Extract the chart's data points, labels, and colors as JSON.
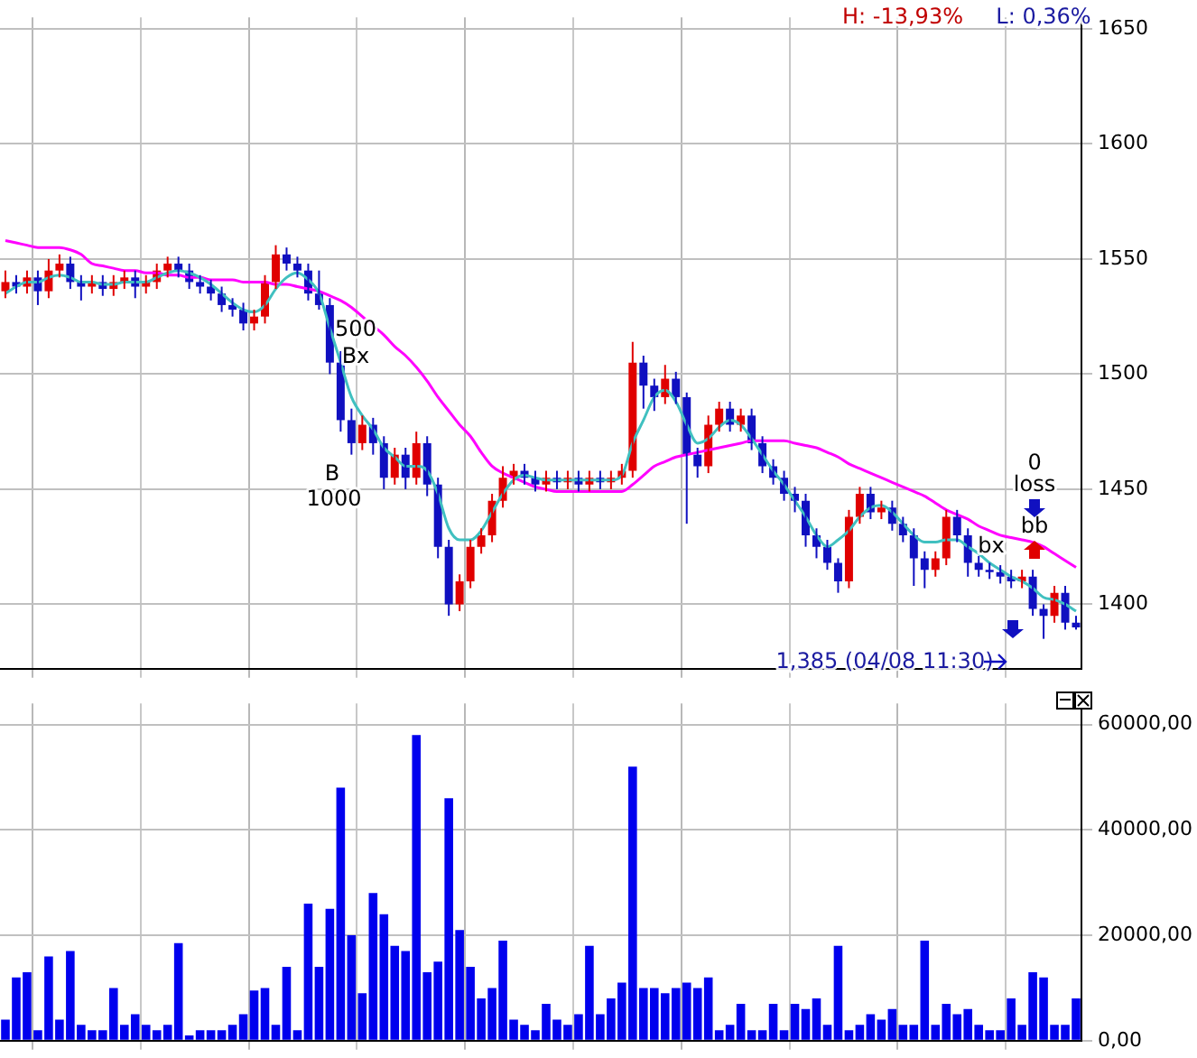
{
  "chart_data": [
    {
      "type": "candlestick",
      "categories": [
        null,
        null,
        null,
        null,
        null,
        null,
        null,
        null,
        null,
        null,
        null,
        null,
        null,
        null,
        null,
        null,
        null,
        null,
        null,
        null,
        null,
        null,
        null,
        null,
        null,
        null,
        null,
        null,
        null,
        null,
        null,
        null,
        null,
        null,
        null,
        null,
        null,
        null,
        null,
        null,
        null,
        null,
        null,
        null,
        null,
        null,
        null,
        null,
        null,
        null,
        null,
        null,
        null,
        null,
        null,
        null,
        null,
        null,
        null,
        null,
        null,
        null,
        null,
        null,
        null,
        null,
        null,
        null,
        null,
        null,
        null,
        null,
        null,
        null,
        null,
        null,
        null,
        null,
        null,
        null,
        null,
        null,
        null,
        null,
        null,
        null,
        null,
        null,
        null,
        null,
        null,
        null,
        null,
        null,
        null,
        null,
        null,
        null,
        null,
        null
      ],
      "ohlc": [
        [
          1536,
          1545,
          1533,
          1540
        ],
        [
          1540,
          1543,
          1535,
          1538
        ],
        [
          1538,
          1545,
          1535,
          1542
        ],
        [
          1542,
          1545,
          1530,
          1536
        ],
        [
          1536,
          1550,
          1533,
          1545
        ],
        [
          1545,
          1552,
          1542,
          1548
        ],
        [
          1548,
          1551,
          1537,
          1540
        ],
        [
          1540,
          1543,
          1532,
          1538
        ],
        [
          1538,
          1543,
          1535,
          1540
        ],
        [
          1540,
          1543,
          1534,
          1537
        ],
        [
          1537,
          1543,
          1534,
          1540
        ],
        [
          1540,
          1545,
          1537,
          1542
        ],
        [
          1542,
          1545,
          1533,
          1538
        ],
        [
          1538,
          1543,
          1535,
          1540
        ],
        [
          1540,
          1548,
          1537,
          1545
        ],
        [
          1545,
          1551,
          1542,
          1548
        ],
        [
          1548,
          1551,
          1542,
          1545
        ],
        [
          1545,
          1548,
          1537,
          1540
        ],
        [
          1540,
          1543,
          1535,
          1538
        ],
        [
          1538,
          1541,
          1532,
          1535
        ],
        [
          1535,
          1538,
          1527,
          1530
        ],
        [
          1530,
          1533,
          1525,
          1528
        ],
        [
          1528,
          1531,
          1519,
          1522
        ],
        [
          1522,
          1528,
          1519,
          1525
        ],
        [
          1525,
          1543,
          1522,
          1540
        ],
        [
          1540,
          1556,
          1537,
          1552
        ],
        [
          1552,
          1555,
          1545,
          1548
        ],
        [
          1548,
          1551,
          1542,
          1545
        ],
        [
          1545,
          1548,
          1532,
          1535
        ],
        [
          1535,
          1545,
          1528,
          1530
        ],
        [
          1530,
          1533,
          1500,
          1505
        ],
        [
          1505,
          1510,
          1475,
          1480
        ],
        [
          1480,
          1485,
          1465,
          1470
        ],
        [
          1470,
          1482,
          1467,
          1478
        ],
        [
          1478,
          1481,
          1465,
          1470
        ],
        [
          1470,
          1473,
          1450,
          1455
        ],
        [
          1455,
          1468,
          1452,
          1465
        ],
        [
          1465,
          1468,
          1450,
          1455
        ],
        [
          1455,
          1475,
          1452,
          1470
        ],
        [
          1470,
          1473,
          1447,
          1452
        ],
        [
          1452,
          1455,
          1420,
          1425
        ],
        [
          1425,
          1428,
          1395,
          1400
        ],
        [
          1400,
          1413,
          1397,
          1410
        ],
        [
          1410,
          1428,
          1407,
          1425
        ],
        [
          1425,
          1433,
          1422,
          1430
        ],
        [
          1430,
          1448,
          1427,
          1445
        ],
        [
          1445,
          1460,
          1442,
          1455
        ],
        [
          1455,
          1461,
          1452,
          1458
        ],
        [
          1458,
          1461,
          1452,
          1455
        ],
        [
          1455,
          1458,
          1449,
          1452
        ],
        [
          1452,
          1458,
          1449,
          1455
        ],
        [
          1455,
          1458,
          1450,
          1453
        ],
        [
          1453,
          1458,
          1450,
          1455
        ],
        [
          1455,
          1458,
          1449,
          1452
        ],
        [
          1452,
          1458,
          1449,
          1455
        ],
        [
          1455,
          1458,
          1450,
          1453
        ],
        [
          1453,
          1458,
          1450,
          1455
        ],
        [
          1455,
          1461,
          1452,
          1458
        ],
        [
          1458,
          1514,
          1455,
          1505
        ],
        [
          1505,
          1508,
          1485,
          1495
        ],
        [
          1495,
          1498,
          1484,
          1490
        ],
        [
          1490,
          1504,
          1487,
          1498
        ],
        [
          1498,
          1501,
          1487,
          1490
        ],
        [
          1490,
          1492,
          1435,
          1465
        ],
        [
          1465,
          1468,
          1455,
          1460
        ],
        [
          1460,
          1482,
          1457,
          1478
        ],
        [
          1478,
          1488,
          1475,
          1485
        ],
        [
          1485,
          1488,
          1475,
          1478
        ],
        [
          1478,
          1485,
          1475,
          1482
        ],
        [
          1482,
          1485,
          1467,
          1470
        ],
        [
          1470,
          1473,
          1457,
          1460
        ],
        [
          1460,
          1463,
          1452,
          1455
        ],
        [
          1455,
          1458,
          1445,
          1448
        ],
        [
          1448,
          1451,
          1440,
          1445
        ],
        [
          1445,
          1448,
          1425,
          1430
        ],
        [
          1430,
          1433,
          1420,
          1425
        ],
        [
          1425,
          1428,
          1415,
          1418
        ],
        [
          1418,
          1420,
          1405,
          1410
        ],
        [
          1410,
          1441,
          1407,
          1438
        ],
        [
          1438,
          1451,
          1435,
          1448
        ],
        [
          1448,
          1451,
          1437,
          1440
        ],
        [
          1440,
          1445,
          1437,
          1442
        ],
        [
          1442,
          1445,
          1432,
          1435
        ],
        [
          1435,
          1438,
          1427,
          1430
        ],
        [
          1430,
          1433,
          1408,
          1420
        ],
        [
          1420,
          1423,
          1407,
          1415
        ],
        [
          1415,
          1423,
          1412,
          1420
        ],
        [
          1420,
          1441,
          1417,
          1438
        ],
        [
          1438,
          1441,
          1427,
          1430
        ],
        [
          1430,
          1433,
          1412,
          1418
        ],
        [
          1418,
          1421,
          1412,
          1415
        ],
        [
          1415,
          1418,
          1411,
          1414
        ],
        [
          1414,
          1417,
          1409,
          1412
        ],
        [
          1412,
          1415,
          1407,
          1410
        ],
        [
          1410,
          1415,
          1407,
          1412
        ],
        [
          1412,
          1415,
          1395,
          1398
        ],
        [
          1398,
          1400,
          1385,
          1395
        ],
        [
          1395,
          1408,
          1392,
          1405
        ],
        [
          1405,
          1408,
          1389,
          1392
        ],
        [
          1392,
          1395,
          1389,
          1390
        ]
      ],
      "series": [
        {
          "type": "line",
          "color": "#40c0c0",
          "values": [
            1535,
            1538,
            1540,
            1540,
            1542,
            1543,
            1542,
            1540,
            1540,
            1539,
            1539,
            1540,
            1540,
            1540,
            1542,
            1544,
            1545,
            1544,
            1542,
            1539,
            1535,
            1531,
            1528,
            1527,
            1530,
            1537,
            1542,
            1544,
            1541,
            1535,
            1520,
            1505,
            1490,
            1482,
            1476,
            1468,
            1464,
            1460,
            1460,
            1458,
            1448,
            1433,
            1428,
            1428,
            1432,
            1440,
            1448,
            1454,
            1456,
            1455,
            1454,
            1454,
            1454,
            1454,
            1454,
            1454,
            1454,
            1456,
            1470,
            1480,
            1490,
            1493,
            1488,
            1478,
            1470,
            1472,
            1477,
            1480,
            1478,
            1472,
            1465,
            1458,
            1452,
            1445,
            1438,
            1430,
            1425,
            1428,
            1432,
            1438,
            1442,
            1443,
            1440,
            1435,
            1430,
            1427,
            1427,
            1428,
            1428,
            1425,
            1422,
            1418,
            1415,
            1412,
            1410,
            1407,
            1403,
            1402,
            1400,
            1397
          ]
        },
        {
          "type": "line",
          "color": "#ff00ff",
          "values": [
            1558,
            1557,
            1556,
            1555,
            1555,
            1555,
            1554,
            1552,
            1548,
            1547,
            1546,
            1545,
            1545,
            1544,
            1544,
            1543,
            1543,
            1542,
            1542,
            1541,
            1541,
            1541,
            1540,
            1540,
            1540,
            1539,
            1539,
            1538,
            1537,
            1536,
            1534,
            1532,
            1529,
            1525,
            1521,
            1517,
            1512,
            1508,
            1503,
            1497,
            1490,
            1484,
            1478,
            1473,
            1466,
            1460,
            1457,
            1455,
            1453,
            1451,
            1450,
            1449,
            1449,
            1449,
            1449,
            1449,
            1449,
            1449,
            1452,
            1456,
            1460,
            1462,
            1464,
            1465,
            1466,
            1467,
            1468,
            1469,
            1470,
            1471,
            1471,
            1471,
            1471,
            1470,
            1469,
            1468,
            1466,
            1464,
            1461,
            1459,
            1457,
            1455,
            1453,
            1451,
            1449,
            1447,
            1444,
            1441,
            1439,
            1437,
            1434,
            1432,
            1430,
            1429,
            1428,
            1427,
            1425,
            1422,
            1419,
            1416
          ]
        }
      ],
      "ylim": [
        1372,
        1655
      ],
      "yticks": [
        1400,
        1450,
        1500,
        1550,
        1600,
        1650
      ],
      "grid": true,
      "tick_labels": "y",
      "annotations": [
        "H: -13,93%",
        "L: 0,36%",
        "500",
        "Bx",
        "B",
        "1000",
        "0",
        "loss",
        "bb",
        "bx",
        "1,385 (04/08 11:30)"
      ]
    },
    {
      "type": "bar",
      "categories": [
        null,
        null,
        null,
        null,
        null,
        null,
        null,
        null,
        null,
        null,
        null,
        null,
        null,
        null,
        null,
        null,
        null,
        null,
        null,
        null,
        null,
        null,
        null,
        null,
        null,
        null,
        null,
        null,
        null,
        null,
        null,
        null,
        null,
        null,
        null,
        null,
        null,
        null,
        null,
        null,
        null,
        null,
        null,
        null,
        null,
        null,
        null,
        null,
        null,
        null,
        null,
        null,
        null,
        null,
        null,
        null,
        null,
        null,
        null,
        null,
        null,
        null,
        null,
        null,
        null,
        null,
        null,
        null,
        null,
        null,
        null,
        null,
        null,
        null,
        null,
        null,
        null,
        null,
        null,
        null,
        null,
        null,
        null,
        null,
        null,
        null,
        null,
        null,
        null,
        null,
        null,
        null,
        null,
        null,
        null,
        null,
        null,
        null,
        null,
        null
      ],
      "values": [
        4000,
        12000,
        13000,
        2000,
        16000,
        4000,
        17000,
        3000,
        2000,
        2000,
        10000,
        3000,
        5000,
        3000,
        2000,
        3000,
        18500,
        1000,
        2000,
        2000,
        2000,
        3000,
        5000,
        9500,
        10000,
        3000,
        14000,
        2000,
        26000,
        14000,
        25000,
        48000,
        20000,
        9000,
        28000,
        24000,
        18000,
        17000,
        58000,
        13000,
        15000,
        46000,
        21000,
        14000,
        8000,
        10000,
        19000,
        4000,
        3000,
        2000,
        7000,
        4000,
        3000,
        5000,
        18000,
        5000,
        8000,
        11000,
        52000,
        10000,
        10000,
        9000,
        10000,
        11000,
        10000,
        12000,
        2000,
        3000,
        7000,
        2000,
        2000,
        7000,
        2000,
        7000,
        6000,
        8000,
        3000,
        18000,
        2000,
        3000,
        5000,
        4000,
        6000,
        3000,
        3000,
        19000,
        3000,
        7000,
        5000,
        6000,
        3000,
        2000,
        2000,
        8000,
        3000,
        13000,
        12000,
        3000,
        3000,
        8000
      ],
      "color": "#0000ee",
      "ylim": [
        0,
        64000
      ],
      "yticks": [
        {
          "value": 0,
          "label": "0,00"
        },
        {
          "value": 20000,
          "label": "20000,00"
        },
        {
          "value": 40000,
          "label": "40000,00"
        },
        {
          "value": 60000,
          "label": "60000,00"
        }
      ],
      "grid": true,
      "tick_labels": "y"
    }
  ]
}
